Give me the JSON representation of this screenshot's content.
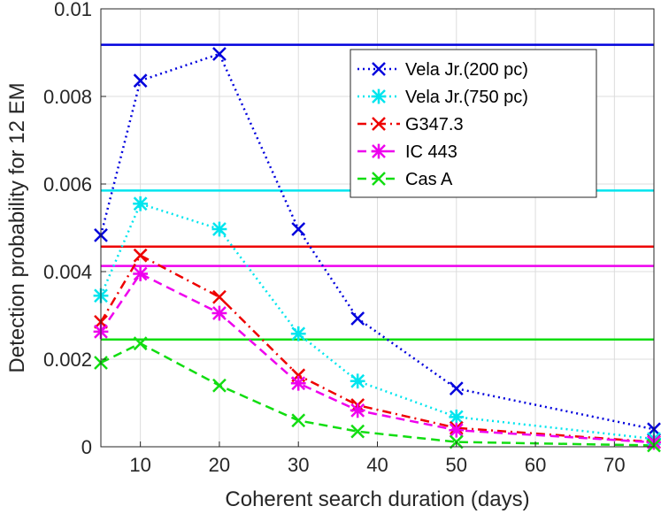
{
  "chart_data": {
    "type": "line",
    "title": "",
    "xlabel": "Coherent search duration (days)",
    "ylabel": "Detection probability for 12 EM",
    "xlim": [
      5,
      75
    ],
    "ylim": [
      0,
      0.01
    ],
    "xticks": [
      10,
      20,
      30,
      40,
      50,
      60,
      70
    ],
    "xtick_labels": [
      "10",
      "20",
      "30",
      "40",
      "50",
      "60",
      "70"
    ],
    "yticks": [
      0,
      0.002,
      0.004,
      0.006,
      0.008,
      0.01
    ],
    "ytick_labels": [
      "0",
      "0.002",
      "0.004",
      "0.006",
      "0.008",
      "0.01"
    ],
    "grid": true,
    "legend_position": "top-right",
    "x": [
      5,
      10,
      20,
      30,
      37.5,
      50,
      75
    ],
    "series": [
      {
        "name": "Vela Jr.(200 pc)",
        "color": "#0000dd",
        "dash": "dotted",
        "marker": "x",
        "values": [
          0.00483,
          0.00836,
          0.00897,
          0.00497,
          0.00293,
          0.00133,
          0.0004
        ],
        "reference_line": 0.00918
      },
      {
        "name": "Vela Jr.(750 pc)",
        "color": "#00e5ee",
        "dash": "dotted",
        "marker": "asterisk",
        "values": [
          0.00345,
          0.00555,
          0.00497,
          0.00258,
          0.0015,
          0.00068,
          0.00018
        ],
        "reference_line": 0.00585
      },
      {
        "name": "G347.3",
        "color": "#ee0000",
        "dash": "dashdot",
        "marker": "x",
        "values": [
          0.00285,
          0.00437,
          0.00342,
          0.00163,
          0.00095,
          0.00043,
          0.00011
        ],
        "reference_line": 0.00457
      },
      {
        "name": "IC 443",
        "color": "#ee00ee",
        "dash": "dashed",
        "marker": "asterisk",
        "values": [
          0.00263,
          0.00395,
          0.00305,
          0.00145,
          0.00083,
          0.00038,
          0.0001
        ],
        "reference_line": 0.00413
      },
      {
        "name": "Cas A",
        "color": "#11dd11",
        "dash": "dashed",
        "marker": "x",
        "values": [
          0.00192,
          0.00236,
          0.0014,
          0.0006,
          0.00035,
          0.00011,
          3e-05
        ],
        "reference_line": 0.00245
      }
    ]
  }
}
